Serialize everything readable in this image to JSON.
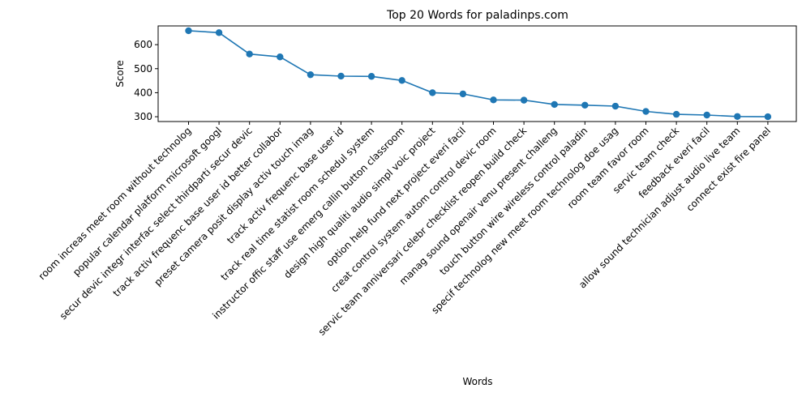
{
  "chart_data": {
    "type": "line",
    "title": "Top 20 Words for paladinps.com",
    "xlabel": "Words",
    "ylabel": "Score",
    "ylim": [
      280,
      678
    ],
    "yticks": [
      300,
      400,
      500,
      600
    ],
    "grid": false,
    "line_color": "#1f77b4",
    "categories": [
      "room increas meet room without technolog",
      "popular calendar platform microsoft googl",
      "secur devic integr interfac select thirdparti secur devic",
      "track activ frequenc base user id better collabor",
      "preset camera posit display activ touch imag",
      "track activ frequenc base user id",
      "track real time statist room schedul system",
      "instructor offic staff use emerg callin button classroom",
      "design high qualiti audio simpl voic project",
      "option help fund next project everi facil",
      "creat control system autom control devic room",
      "servic team anniversari celebr checklist reopen build check",
      "manag sound openair venu present challeng",
      "touch button wire wireless control paladin",
      "specif technolog new meet room technolog doe usag",
      "room team favor room",
      "servic team check",
      "feedback everi facil",
      "allow sound technician adjust audio live team",
      "connect exist fire panel"
    ],
    "values": [
      658,
      650,
      561,
      549,
      475,
      469,
      468,
      451,
      400,
      395,
      370,
      369,
      351,
      348,
      344,
      322,
      310,
      307,
      301,
      300
    ]
  }
}
